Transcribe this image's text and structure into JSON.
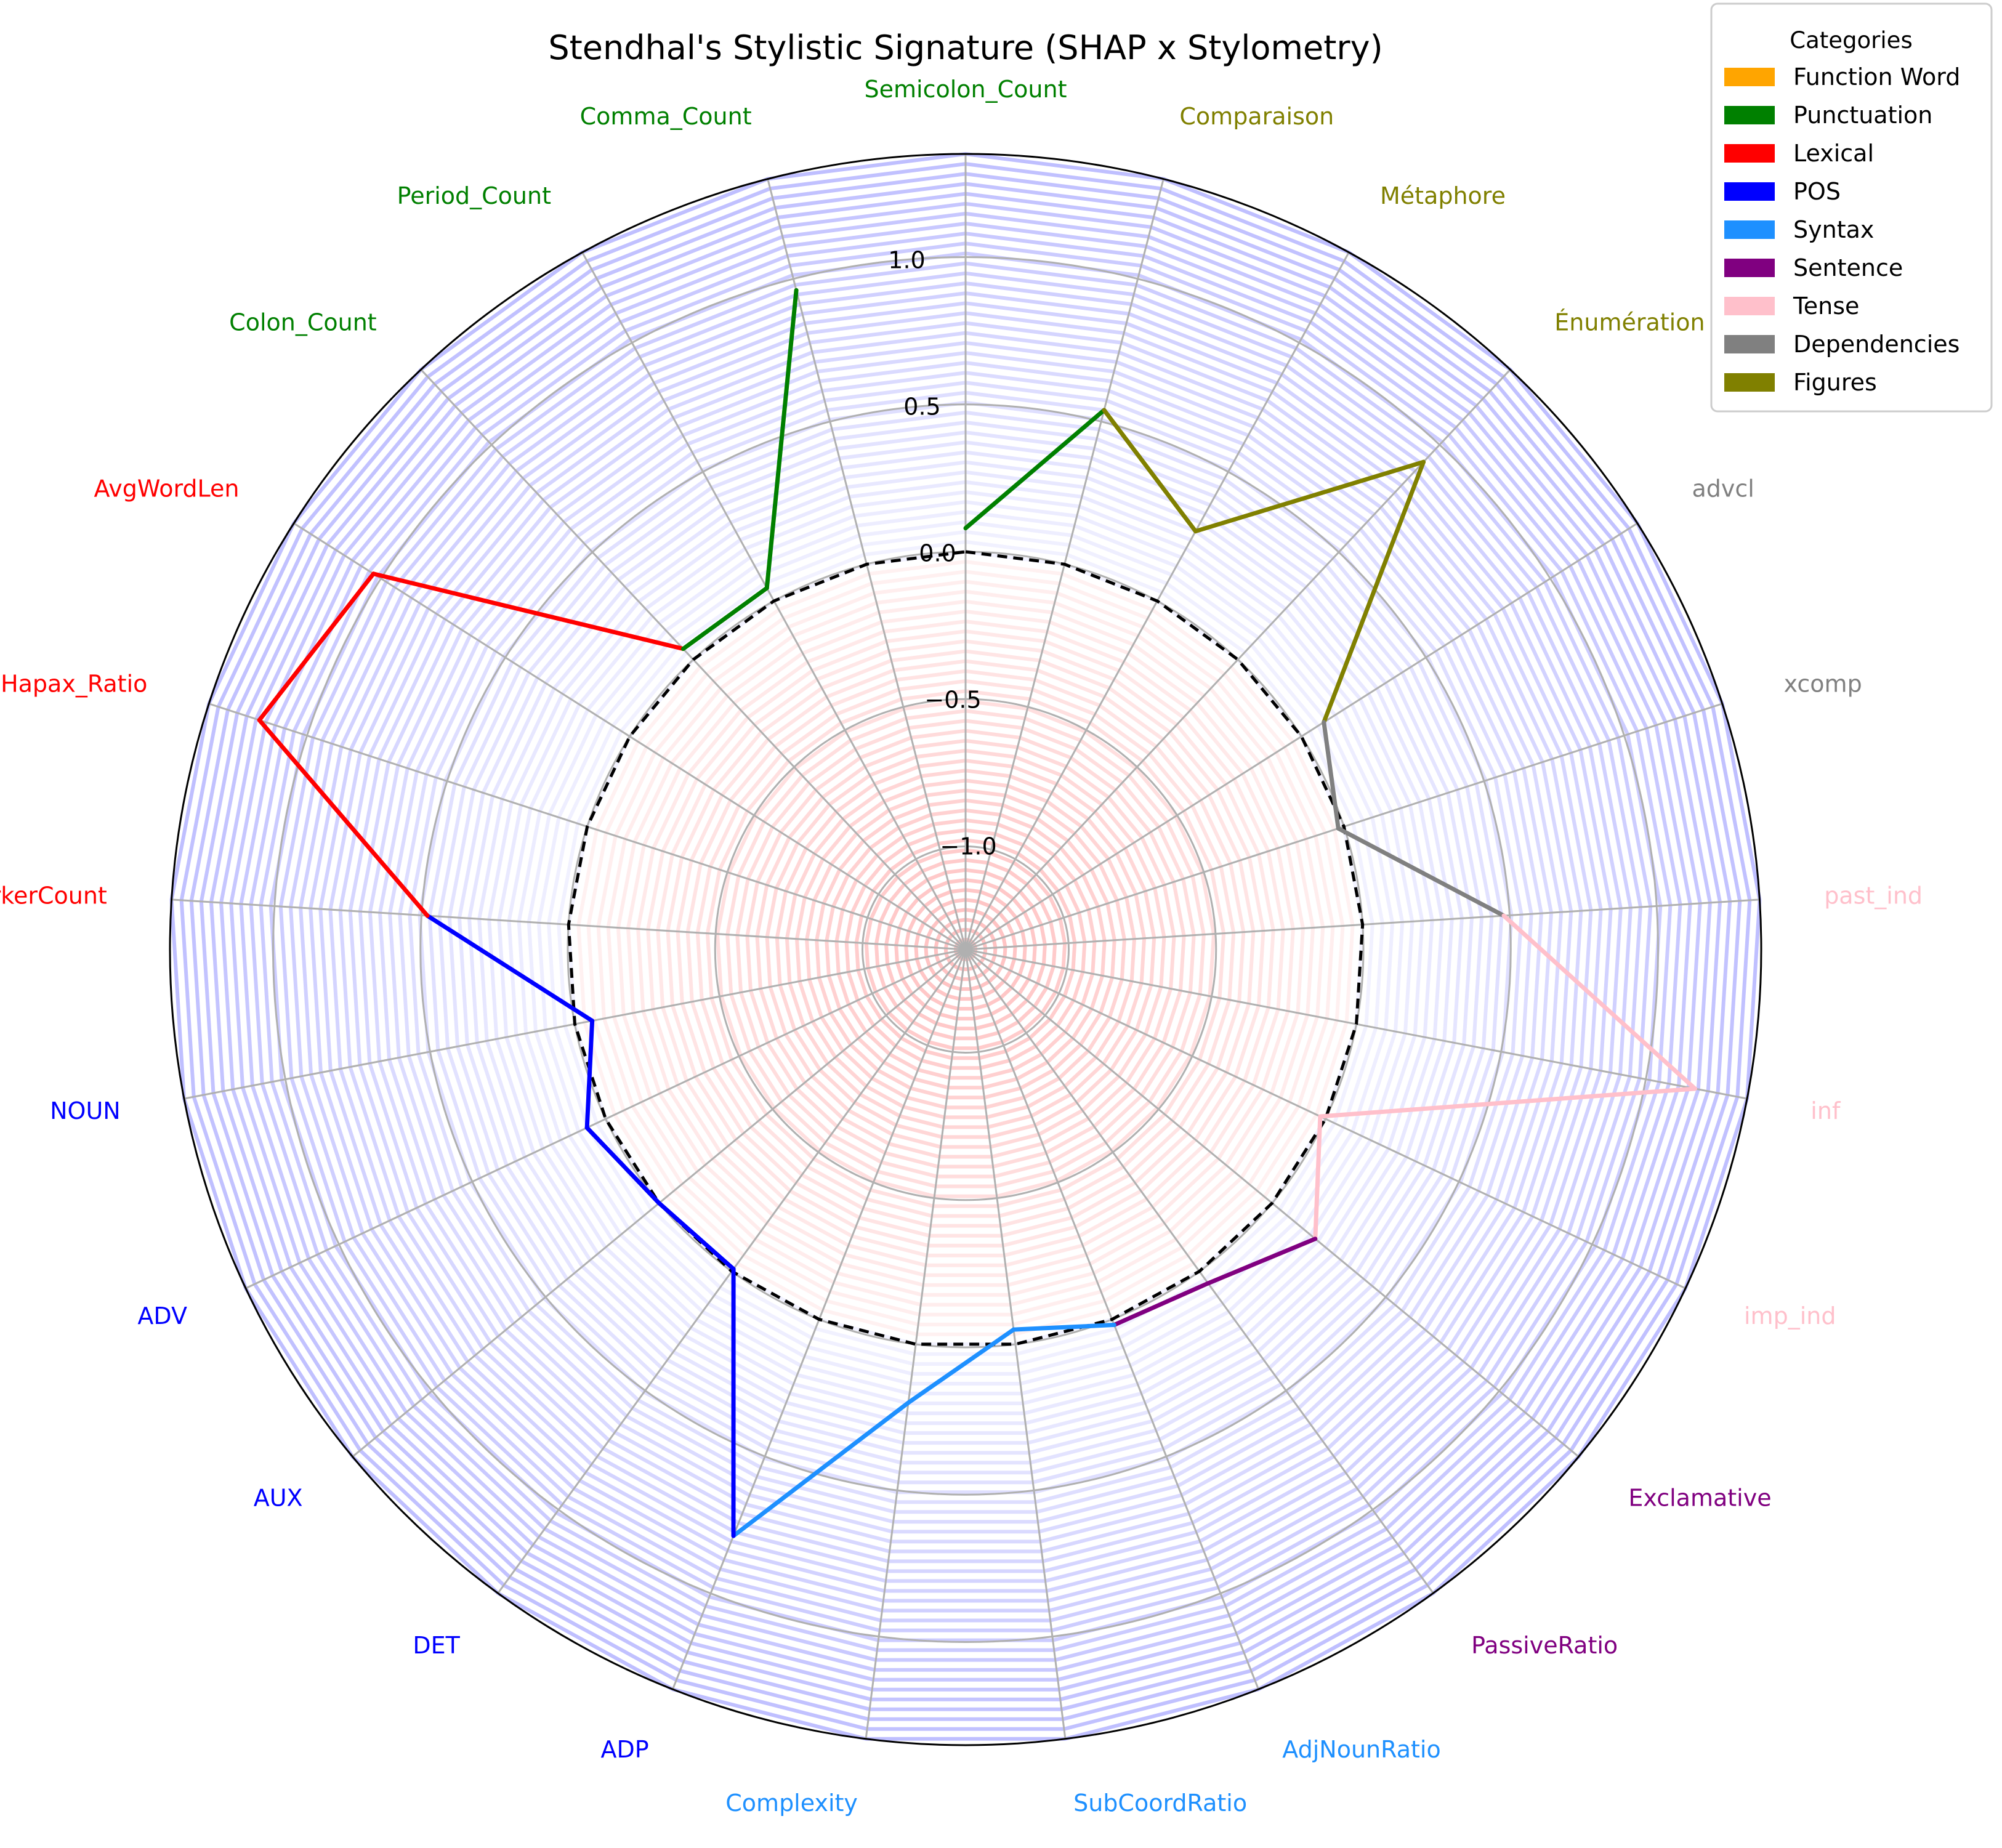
{
  "chart_data": {
    "type": "radar",
    "title": "Stendhal's Stylistic Signature (SHAP x Stylometry)",
    "rlim": [
      -1.35,
      1.35
    ],
    "r_ticks": [
      -1.0,
      -0.5,
      0.0,
      0.5,
      1.0
    ],
    "r_tick_labels": [
      "−1.0",
      "−0.5",
      "0.0",
      "0.5",
      "1.0"
    ],
    "grid": true,
    "baseline": 0.0,
    "features": [
      {
        "name": "Semicolon_Count",
        "category": "Punctuation",
        "value": 0.08
      },
      {
        "name": "Comparaison",
        "category": "Figures",
        "value": 0.54
      },
      {
        "name": "Métaphore",
        "category": "Figures",
        "value": 0.27
      },
      {
        "name": "Énumération",
        "category": "Figures",
        "value": 0.92
      },
      {
        "name": "advcl",
        "category": "Dependencies",
        "value": 0.09
      },
      {
        "name": "xcomp",
        "category": "Dependencies",
        "value": -0.02
      },
      {
        "name": "past_ind",
        "category": "Tense",
        "value": 0.48
      },
      {
        "name": "inf",
        "category": "Tense",
        "value": 1.17
      },
      {
        "name": "imp_ind",
        "category": "Tense",
        "value": -0.02
      },
      {
        "name": "Exclamative",
        "category": "Sentence",
        "value": 0.19
      },
      {
        "name": "PassiveRatio",
        "category": "Sentence",
        "value": 0.05
      },
      {
        "name": "AdjNounRatio",
        "category": "Syntax",
        "value": 0.02
      },
      {
        "name": "SubCoordRatio",
        "category": "Syntax",
        "value": -0.05
      },
      {
        "name": "Complexity",
        "category": "Syntax",
        "value": 0.2
      },
      {
        "name": "ADP",
        "category": "POS",
        "value": 0.79
      },
      {
        "name": "DET",
        "category": "POS",
        "value": -0.01
      },
      {
        "name": "AUX",
        "category": "POS",
        "value": 0.0
      },
      {
        "name": "ADV",
        "category": "POS",
        "value": 0.07
      },
      {
        "name": "NOUN",
        "category": "POS",
        "value": -0.06
      },
      {
        "name": "MarkerCount",
        "category": "Lexical",
        "value": 0.48
      },
      {
        "name": "Hapax_Ratio",
        "category": "Lexical",
        "value": 1.17
      },
      {
        "name": "AvgWordLen",
        "category": "Lexical",
        "value": 1.03
      },
      {
        "name": "Colon_Count",
        "category": "Punctuation",
        "value": 0.05
      },
      {
        "name": "Period_Count",
        "category": "Punctuation",
        "value": 0.05
      },
      {
        "name": "Comma_Count",
        "category": "Punctuation",
        "value": 0.96
      }
    ],
    "legend": {
      "title": "Categories",
      "placement": "top-right",
      "entries": [
        {
          "label": "Function Word",
          "color": "#ffa500"
        },
        {
          "label": "Punctuation",
          "color": "#008000"
        },
        {
          "label": "Lexical",
          "color": "#ff0000"
        },
        {
          "label": "POS",
          "color": "#0000ff"
        },
        {
          "label": "Syntax",
          "color": "#1e90ff"
        },
        {
          "label": "Sentence",
          "color": "#800080"
        },
        {
          "label": "Tense",
          "color": "#ffc0cb"
        },
        {
          "label": "Dependencies",
          "color": "#808080"
        },
        {
          "label": "Figures",
          "color": "#808000"
        }
      ]
    },
    "category_colors": {
      "Function Word": "#ffa500",
      "Punctuation": "#008000",
      "Lexical": "#ff0000",
      "POS": "#0000ff",
      "Syntax": "#1e90ff",
      "Sentence": "#800080",
      "Tense": "#ffc0cb",
      "Dependencies": "#808080",
      "Figures": "#808000"
    },
    "fill_colors": {
      "positive": "#0000ff",
      "negative": "#ff0000"
    }
  }
}
